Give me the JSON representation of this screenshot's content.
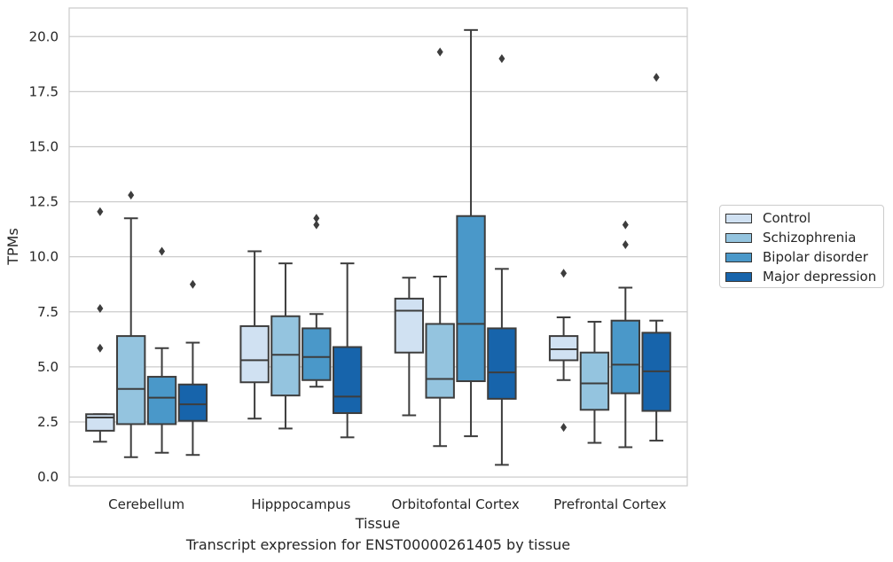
{
  "chart_data": {
    "type": "box",
    "title": "",
    "caption": "Transcript expression for ENST00000261405 by tissue",
    "xlabel": "Tissue",
    "ylabel": "TPMs",
    "ylim": [
      -0.4,
      21.3
    ],
    "yticks": [
      "0.0",
      "2.5",
      "5.0",
      "7.5",
      "10.0",
      "12.5",
      "15.0",
      "17.5",
      "20.0"
    ],
    "ytick_values": [
      0,
      2.5,
      5,
      7.5,
      10,
      12.5,
      15,
      17.5,
      20
    ],
    "grid": true,
    "legend_position": "right",
    "categories": [
      "Cerebellum",
      "Hipppocampus",
      "Orbitofontal Cortex",
      "Prefrontal Cortex"
    ],
    "series": [
      {
        "name": "Control",
        "color": "#d0e1f2",
        "boxes": [
          {
            "whislo": 1.6,
            "q1": 2.1,
            "med": 2.7,
            "q3": 2.85,
            "whishi": 2.85,
            "fliers": [
              5.85,
              7.65,
              12.05
            ]
          },
          {
            "whislo": 2.65,
            "q1": 4.3,
            "med": 5.3,
            "q3": 6.85,
            "whishi": 10.25,
            "fliers": []
          },
          {
            "whislo": 2.8,
            "q1": 5.65,
            "med": 7.55,
            "q3": 8.1,
            "whishi": 9.05,
            "fliers": []
          },
          {
            "whislo": 4.4,
            "q1": 5.3,
            "med": 5.8,
            "q3": 6.4,
            "whishi": 7.25,
            "fliers": [
              2.25,
              9.25
            ]
          }
        ]
      },
      {
        "name": "Schizophrenia",
        "color": "#94c4df",
        "boxes": [
          {
            "whislo": 0.9,
            "q1": 2.4,
            "med": 4.0,
            "q3": 6.4,
            "whishi": 11.75,
            "fliers": [
              12.8
            ]
          },
          {
            "whislo": 2.2,
            "q1": 3.7,
            "med": 5.55,
            "q3": 7.3,
            "whishi": 9.7,
            "fliers": []
          },
          {
            "whislo": 1.4,
            "q1": 3.6,
            "med": 4.45,
            "q3": 6.95,
            "whishi": 9.1,
            "fliers": [
              19.3
            ]
          },
          {
            "whislo": 1.55,
            "q1": 3.05,
            "med": 4.25,
            "q3": 5.65,
            "whishi": 7.05,
            "fliers": []
          }
        ]
      },
      {
        "name": "Bipolar disorder",
        "color": "#4a98c9",
        "boxes": [
          {
            "whislo": 1.1,
            "q1": 2.4,
            "med": 3.6,
            "q3": 4.55,
            "whishi": 5.85,
            "fliers": [
              10.25
            ]
          },
          {
            "whislo": 4.1,
            "q1": 4.4,
            "med": 5.45,
            "q3": 6.75,
            "whishi": 7.4,
            "fliers": [
              11.45,
              11.75
            ]
          },
          {
            "whislo": 1.85,
            "q1": 4.35,
            "med": 6.95,
            "q3": 11.85,
            "whishi": 20.3,
            "fliers": []
          },
          {
            "whislo": 1.35,
            "q1": 3.8,
            "med": 5.1,
            "q3": 7.1,
            "whishi": 8.6,
            "fliers": [
              10.55,
              11.45
            ]
          }
        ]
      },
      {
        "name": "Major depression",
        "color": "#1764ab",
        "boxes": [
          {
            "whislo": 1.0,
            "q1": 2.55,
            "med": 3.3,
            "q3": 4.2,
            "whishi": 6.1,
            "fliers": [
              8.75
            ]
          },
          {
            "whislo": 1.8,
            "q1": 2.9,
            "med": 3.65,
            "q3": 5.9,
            "whishi": 9.7,
            "fliers": []
          },
          {
            "whislo": 0.55,
            "q1": 3.55,
            "med": 4.75,
            "q3": 6.75,
            "whishi": 9.45,
            "fliers": [
              19.0
            ]
          },
          {
            "whislo": 1.65,
            "q1": 3.0,
            "med": 4.8,
            "q3": 6.55,
            "whishi": 7.1,
            "fliers": [
              18.15
            ]
          }
        ]
      }
    ]
  }
}
